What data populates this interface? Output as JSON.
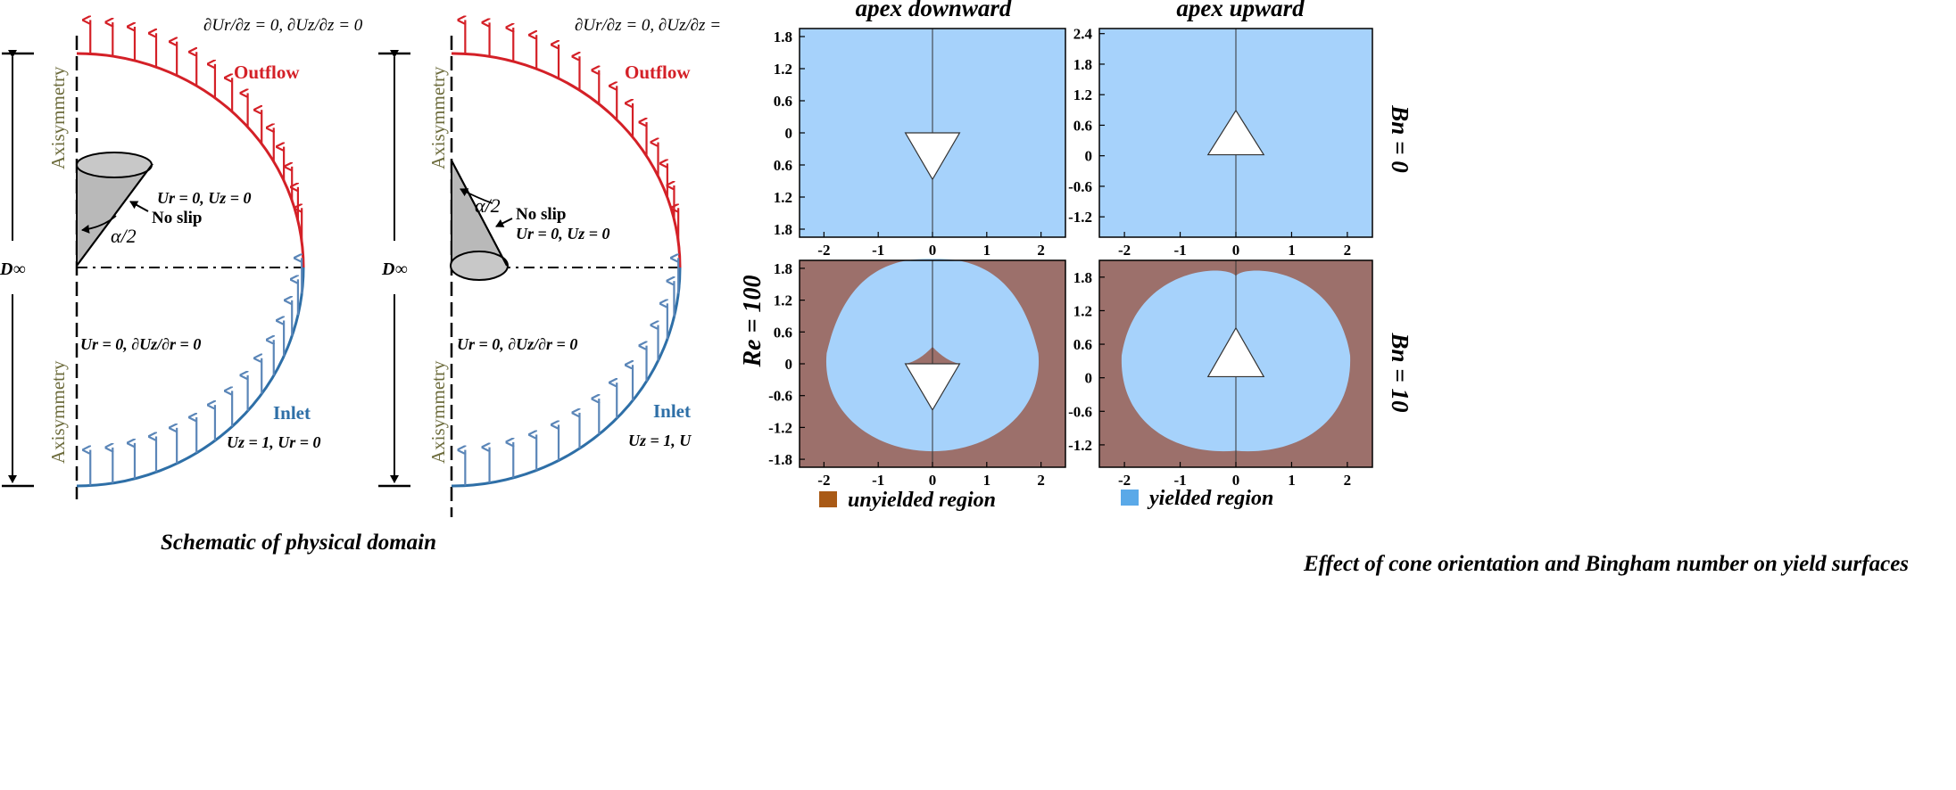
{
  "colors": {
    "outflow": "#d42027",
    "inlet": "#2e6fa7",
    "inlet_arrow": "#5b86b8",
    "axis_label": "#6b6a3a",
    "yielded": "#a6d2fb",
    "unyielded": "#9c706b",
    "cone": "#b9b9b9",
    "legend_unyielded": "#a95a16",
    "legend_yielded": "#5aa9e8"
  },
  "schematic": {
    "caption": "Schematic of physical domain",
    "panels": [
      {
        "axisymmetry_top": "Axisymmetry",
        "axisymmetry_bottom": "Axisymmetry",
        "d_inf": "D∞",
        "outflow_label": "Outflow",
        "inlet_label": "Inlet",
        "outflow_bc": "∂Ur/∂z = 0, ∂Uz/∂z = 0",
        "cone_bc": "Ur = 0, Uz = 0",
        "no_slip": "No slip",
        "angle": "α/2",
        "axis_bc": "Ur = 0, ∂Uz/∂r = 0",
        "inlet_bc": "Uz = 1, Ur = 0"
      },
      {
        "axisymmetry_top": "Axisymmetry",
        "axisymmetry_bottom": "Axisymmetry",
        "d_inf": "D∞",
        "outflow_label": "Outflow",
        "inlet_label": "Inlet",
        "outflow_bc": "∂Ur/∂z = 0, ∂Uz/∂z =",
        "cone_bc": "Ur = 0, Uz = 0",
        "no_slip": "No slip",
        "angle": "α/2",
        "axis_bc": "Ur = 0, ∂Uz/∂r = 0",
        "inlet_bc": "Uz = 1, U"
      }
    ]
  },
  "results": {
    "caption": "Effect of cone orientation and Bingham number on yield surfaces",
    "col_titles": [
      "apex downward",
      "apex upward"
    ],
    "re_label": "Re = 100",
    "row_labels": [
      "Bn = 0",
      "Bn = 10"
    ],
    "legend": [
      {
        "label": "unyielded region",
        "color": "#a95a16"
      },
      {
        "label": "yielded region",
        "color": "#5aa9e8"
      }
    ],
    "plots": [
      {
        "name": "apex-down-bn0",
        "orientation": "down",
        "bn": 0,
        "y_ticks": [
          "1.8",
          "1.2",
          "0.6",
          "0",
          "0.6",
          "1.2",
          "1.8"
        ],
        "x_ticks": [
          "-2",
          "-1",
          "0",
          "1",
          "2"
        ],
        "ylim": [
          -1.95,
          1.95
        ],
        "xlim": [
          -2.45,
          2.45
        ]
      },
      {
        "name": "apex-up-bn0",
        "orientation": "up",
        "bn": 0,
        "y_ticks": [
          "2.4",
          "1.8",
          "1.2",
          "0.6",
          "0",
          "-0.6",
          "-1.2"
        ],
        "x_ticks": [
          "-2",
          "-1",
          "0",
          "1",
          "2"
        ],
        "ylim": [
          -1.6,
          2.5
        ],
        "xlim": [
          -2.45,
          2.45
        ]
      },
      {
        "name": "apex-down-bn10",
        "orientation": "down",
        "bn": 10,
        "y_ticks": [
          "1.8",
          "1.2",
          "0.6",
          "0",
          "-0.6",
          "-1.2",
          "-1.8"
        ],
        "x_ticks": [
          "-2",
          "-1",
          "0",
          "1",
          "2"
        ],
        "ylim": [
          -1.95,
          1.95
        ],
        "xlim": [
          -2.45,
          2.45
        ]
      },
      {
        "name": "apex-up-bn10",
        "orientation": "up",
        "bn": 10,
        "y_ticks": [
          "1.8",
          "1.2",
          "0.6",
          "0",
          "-0.6",
          "-1.2"
        ],
        "x_ticks": [
          "-2",
          "-1",
          "0",
          "1",
          "2"
        ],
        "ylim": [
          -1.6,
          2.1
        ],
        "xlim": [
          -2.45,
          2.45
        ]
      }
    ]
  }
}
